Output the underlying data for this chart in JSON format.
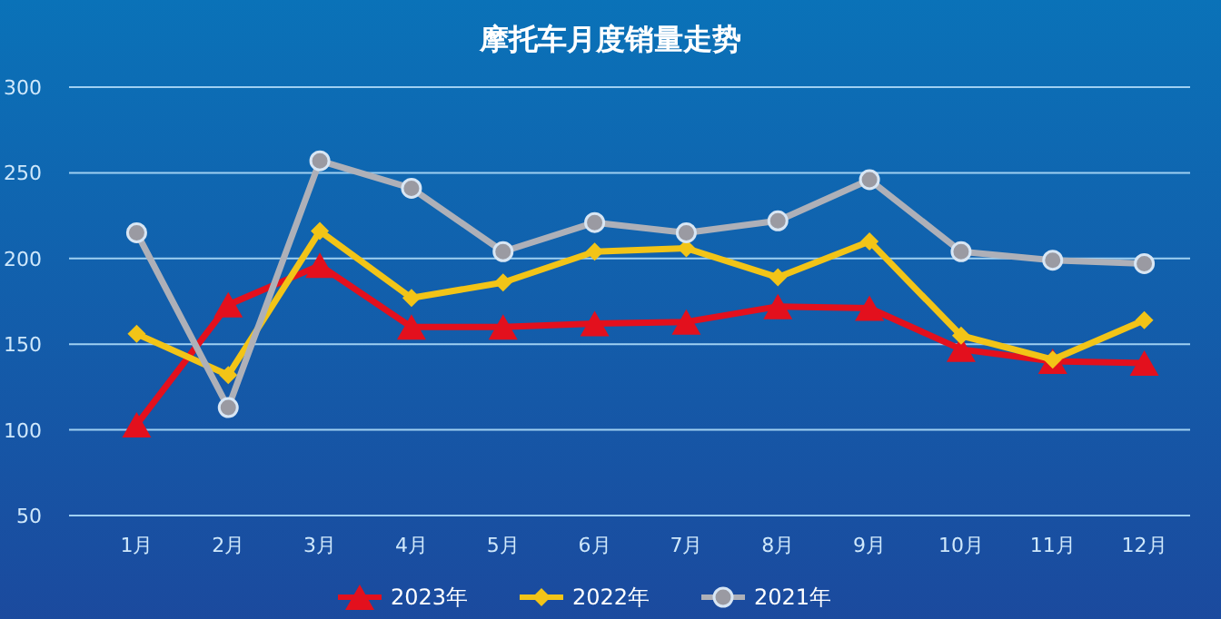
{
  "chart_data": {
    "type": "line",
    "title": "摩托车月度销量走势",
    "categories": [
      "1月",
      "2月",
      "3月",
      "4月",
      "5月",
      "6月",
      "7月",
      "8月",
      "9月",
      "10月",
      "11月",
      "12月"
    ],
    "series": [
      {
        "name": "2023年",
        "color": "#e3101d",
        "marker": "triangle",
        "values": [
          103,
          173,
          196,
          160,
          160,
          162,
          163,
          172,
          171,
          147,
          140,
          139
        ]
      },
      {
        "name": "2022年",
        "color": "#f2c417",
        "marker": "diamond",
        "values": [
          156,
          132,
          216,
          177,
          186,
          204,
          206,
          189,
          210,
          155,
          141,
          164
        ]
      },
      {
        "name": "2021年",
        "color": "#aeb0b8",
        "marker": "circle",
        "values": [
          215,
          113,
          257,
          241,
          204,
          221,
          215,
          222,
          246,
          204,
          199,
          197
        ]
      }
    ],
    "ylim": [
      50,
      300
    ],
    "yticks": [
      50,
      100,
      150,
      200,
      250,
      300
    ],
    "grid": "y",
    "legend": "bottom"
  }
}
